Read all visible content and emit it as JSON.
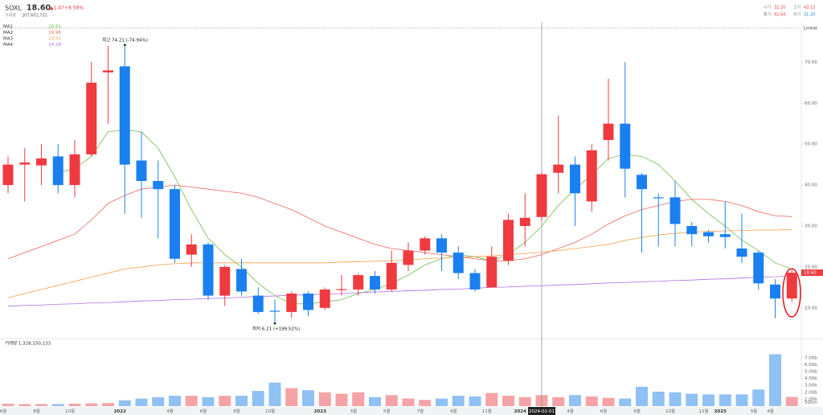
{
  "header": {
    "symbol": "SOXL",
    "price": "18.60",
    "change": "▲1.47",
    "change_pct": "+8.58%",
    "volume_label": "거래량",
    "volume": "207,601,752",
    "ohlc": [
      {
        "label": "시가",
        "value": "32.20"
      },
      {
        "label": "고가",
        "value": "43.13"
      },
      {
        "label": "종가",
        "value": "42.64"
      },
      {
        "label": "저가",
        "value": "31.20"
      }
    ]
  },
  "chart_data": {
    "type": "candlestick",
    "scale_label": "Linear",
    "up_color": "#ef3b40",
    "down_color": "#1a80f0",
    "volume_up_color": "#f5a3a6",
    "volume_down_color": "#8fc1f5",
    "categories": [
      "6월",
      null,
      "8월",
      null,
      "10월",
      null,
      null,
      "2022",
      null,
      null,
      "4월",
      null,
      "6월",
      null,
      "8월",
      null,
      "10월",
      null,
      null,
      "2023",
      null,
      "3월",
      null,
      "5월",
      null,
      "7월",
      null,
      "9월",
      null,
      "11월",
      null,
      "2024",
      "2024-02-01",
      null,
      "4월",
      null,
      "6월",
      null,
      "8월",
      null,
      "10월",
      null,
      "12월",
      "2025",
      null,
      "3월",
      "4월",
      null
    ],
    "open": [
      40,
      45,
      44.8,
      47,
      40,
      47.5,
      67.5,
      69,
      46,
      41,
      39,
      23,
      25.5,
      13,
      19.5,
      13,
      9.3,
      9,
      13.5,
      10,
      14.5,
      14.5,
      17.8,
      14.5,
      20.5,
      24,
      27,
      23.5,
      18.5,
      15,
      21.5,
      30,
      32.2,
      43,
      45,
      36,
      51,
      55,
      42.5,
      37,
      37,
      30,
      28.5,
      28,
      24.5,
      23.5,
      15.7,
      12.3
    ],
    "high": [
      47,
      49,
      50,
      50,
      51,
      70,
      74,
      74.21,
      53,
      46,
      40,
      28,
      26,
      20.5,
      22,
      15,
      12,
      14,
      14,
      15,
      18,
      18.5,
      19,
      24,
      26,
      27.5,
      28,
      25,
      19.5,
      25,
      33,
      38,
      43.13,
      57,
      47,
      50,
      66,
      70,
      43,
      38,
      41,
      31,
      29,
      36,
      33,
      24,
      17,
      19.5
    ],
    "low": [
      38,
      36,
      40,
      38,
      37,
      47,
      55,
      33,
      32,
      27,
      21,
      20,
      12,
      10.5,
      13,
      8.5,
      6.21,
      7.5,
      8,
      9.5,
      13,
      13,
      13.5,
      14,
      19,
      23,
      19,
      17,
      14,
      15,
      20.5,
      25,
      31.2,
      38,
      30,
      33.5,
      46,
      37,
      23.5,
      25,
      25,
      25,
      26,
      24.5,
      21,
      14.5,
      7.5,
      11.5
    ],
    "close": [
      45,
      45.5,
      46.5,
      40,
      47.5,
      65,
      68,
      45,
      41,
      39,
      22,
      25.5,
      13,
      20,
      14,
      9,
      9.1,
      13.5,
      9.5,
      14.5,
      14.6,
      18,
      14.5,
      21,
      24,
      27,
      23.5,
      18.5,
      14.5,
      22.5,
      31.5,
      32,
      42.64,
      45,
      38,
      48.5,
      55,
      44,
      39,
      36.9,
      30.5,
      28,
      27.5,
      27.3,
      22.5,
      16,
      12.3,
      18.6
    ],
    "volume": [
      0.35,
      0.3,
      0.3,
      0.3,
      0.35,
      0.4,
      0.45,
      0.85,
      1.1,
      1.3,
      1.5,
      1.5,
      1.3,
      1.5,
      1.5,
      2.2,
      3.4,
      2.6,
      2.3,
      2.0,
      1.8,
      2.0,
      1.3,
      1.6,
      1.1,
      0.9,
      1.1,
      1.5,
      1.4,
      1.9,
      1.5,
      1.3,
      1.6,
      1.3,
      1.6,
      1.4,
      1.2,
      1.1,
      2.8,
      2.1,
      2.0,
      1.8,
      1.7,
      1.7,
      1.7,
      2.4,
      7.5,
      1.33
    ],
    "volume_title": "거래량 1,328,150,133",
    "series": [
      {
        "name": "MA1",
        "legend_value": "26.81",
        "color": "#6cc04a",
        "values": [
          null,
          null,
          null,
          43,
          44,
          47,
          53,
          53.5,
          53,
          49,
          42,
          34,
          27,
          23,
          20,
          16,
          13,
          11,
          11,
          11.5,
          12,
          13.5,
          14.5,
          16,
          18,
          20.5,
          22,
          23,
          22.5,
          21.5,
          23,
          26,
          30,
          35,
          39,
          42.5,
          46.5,
          47.5,
          47,
          45,
          41,
          36.5,
          33,
          30,
          26.5,
          24,
          21,
          19.5
        ]
      },
      {
        "name": "MA2",
        "legend_value": "19.96",
        "color": "#e8665c",
        "values": [
          22,
          23.5,
          25,
          26.5,
          28,
          31.5,
          35.5,
          37.5,
          39,
          39.5,
          40,
          39.5,
          39,
          38.5,
          38,
          37,
          35.5,
          34,
          32,
          30,
          28.5,
          27,
          25.5,
          24.5,
          24,
          23.5,
          23,
          22.5,
          22,
          21.5,
          21.5,
          22,
          23,
          24.5,
          26,
          28,
          30.5,
          32.5,
          34,
          35,
          36,
          36.5,
          36.5,
          36,
          35,
          33.5,
          32.5,
          32.3
        ]
      },
      {
        "name": "MA3",
        "legend_value": "23.91",
        "color": "#f5a04a",
        "values": [
          12.5,
          13.5,
          14.5,
          15.5,
          16.5,
          17.5,
          18.5,
          19.5,
          20,
          20.5,
          20.8,
          21,
          21,
          21,
          21,
          21,
          21,
          21,
          21,
          21,
          21.2,
          21.3,
          21.4,
          21.5,
          21.7,
          22,
          22.2,
          22.4,
          22.5,
          22.7,
          23,
          23.3,
          23.6,
          24,
          24.5,
          25,
          25.5,
          26.5,
          27.2,
          27.8,
          28.2,
          28.5,
          28.7,
          28.8,
          28.9,
          29,
          29,
          29.2
        ]
      },
      {
        "name": "MA4",
        "legend_value": "14.29",
        "color": "#b06ee0",
        "values": [
          10.4,
          10.6,
          10.7,
          10.9,
          11.0,
          11.2,
          11.3,
          11.5,
          11.7,
          11.8,
          12.0,
          12.1,
          12.3,
          12.4,
          12.6,
          12.8,
          12.9,
          13.1,
          13.2,
          13.4,
          13.5,
          13.7,
          13.9,
          14.0,
          14.2,
          14.3,
          14.5,
          14.6,
          14.8,
          15.0,
          15.1,
          15.3,
          15.4,
          15.6,
          15.7,
          15.9,
          16.1,
          16.2,
          16.4,
          16.5,
          16.7,
          16.8,
          17.0,
          17.1,
          17.3,
          17.5,
          17.6,
          17.8
        ]
      }
    ],
    "ylim": [
      2.7,
      79.3
    ],
    "yticks": [
      {
        "value": 10,
        "label": "10.00"
      },
      {
        "value": 20,
        "label": "20.00"
      },
      {
        "value": 30,
        "label": "30.00"
      },
      {
        "value": 40,
        "label": "40.00"
      },
      {
        "value": 50,
        "label": "50.00"
      },
      {
        "value": 60,
        "label": "60.00"
      },
      {
        "value": 70,
        "label": "70.00"
      }
    ],
    "volume_ylim": [
      0,
      9.3
    ],
    "volume_ticks": [
      {
        "value": 0.5,
        "label": "500m"
      },
      {
        "value": 1,
        "label": "1.00b"
      },
      {
        "value": 2,
        "label": "2.00b"
      },
      {
        "value": 3,
        "label": "3.00b"
      },
      {
        "value": 4,
        "label": "4.00b"
      },
      {
        "value": 5,
        "label": "5.00b"
      },
      {
        "value": 6,
        "label": "6.00b"
      },
      {
        "value": 7,
        "label": "7.00b"
      }
    ],
    "annotations": {
      "high": "최고 74.21 (-74.94%)",
      "low": "최저 6.21 (+199.52%)"
    }
  }
}
